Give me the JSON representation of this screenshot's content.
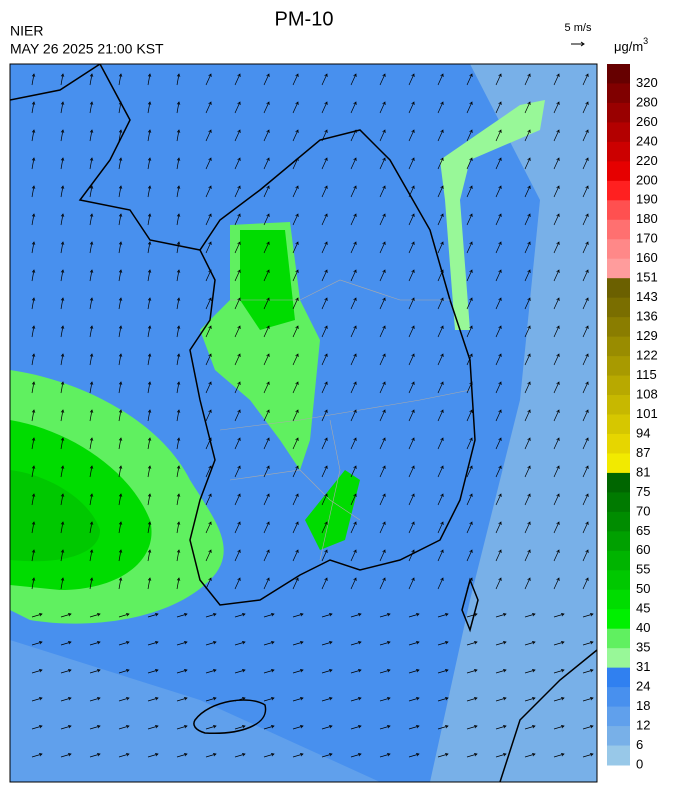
{
  "header": {
    "title": "PM-10",
    "agency": "NIER",
    "timestamp": "MAY 26 2025 21:00 KST"
  },
  "wind_scale": "5 m/s",
  "unit": {
    "base": "μg/m",
    "sup": "3"
  },
  "colorbar": [
    {
      "label": 320,
      "color": "#660000"
    },
    {
      "label": 280,
      "color": "#800000"
    },
    {
      "label": 260,
      "color": "#990000"
    },
    {
      "label": 240,
      "color": "#b30000"
    },
    {
      "label": 220,
      "color": "#cc0000"
    },
    {
      "label": 200,
      "color": "#e60000"
    },
    {
      "label": 190,
      "color": "#ff2020"
    },
    {
      "label": 180,
      "color": "#ff5050"
    },
    {
      "label": 170,
      "color": "#ff7070"
    },
    {
      "label": 160,
      "color": "#ff8888"
    },
    {
      "label": 151,
      "color": "#ff9c9c"
    },
    {
      "label": 143,
      "color": "#6b6000"
    },
    {
      "label": 136,
      "color": "#7a6e00"
    },
    {
      "label": 129,
      "color": "#8a7d00"
    },
    {
      "label": 122,
      "color": "#998c00"
    },
    {
      "label": 115,
      "color": "#a89a00"
    },
    {
      "label": 108,
      "color": "#b8a900"
    },
    {
      "label": 101,
      "color": "#c7b800"
    },
    {
      "label": 94,
      "color": "#d6c700"
    },
    {
      "label": 87,
      "color": "#e6d600"
    },
    {
      "label": 81,
      "color": "#f2ea00"
    },
    {
      "label": 75,
      "color": "#006600"
    },
    {
      "label": 70,
      "color": "#007a00"
    },
    {
      "label": 65,
      "color": "#008c00"
    },
    {
      "label": 60,
      "color": "#00a000"
    },
    {
      "label": 55,
      "color": "#00b400"
    },
    {
      "label": 50,
      "color": "#00c800"
    },
    {
      "label": 45,
      "color": "#00dc00"
    },
    {
      "label": 40,
      "color": "#00f000"
    },
    {
      "label": 35,
      "color": "#60f060"
    },
    {
      "label": 31,
      "color": "#98f898"
    },
    {
      "label": 24,
      "color": "#3080f0"
    },
    {
      "label": 18,
      "color": "#4890ee"
    },
    {
      "label": 12,
      "color": "#60a0ec"
    },
    {
      "label": 6,
      "color": "#78b0e8"
    },
    {
      "label": 0,
      "color": "#98c8e8"
    }
  ]
}
